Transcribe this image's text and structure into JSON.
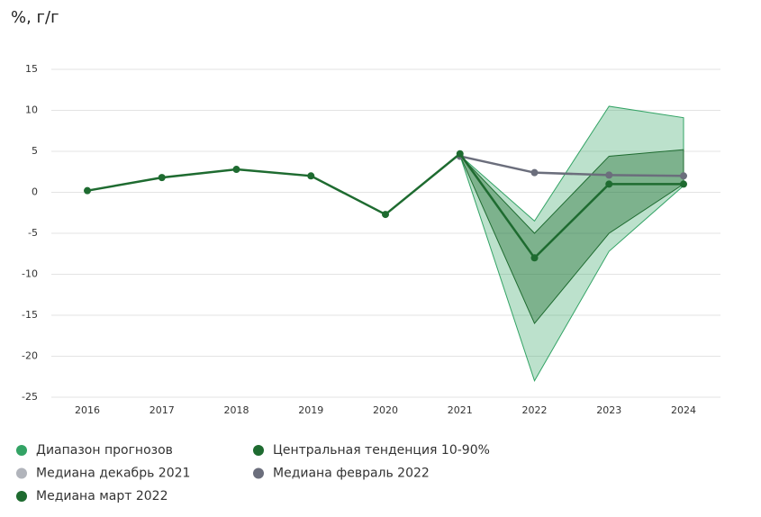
{
  "chart_data": {
    "type": "line",
    "title": "%, г/г",
    "categories": [
      "2016",
      "2017",
      "2018",
      "2019",
      "2020",
      "2021",
      "2022",
      "2023",
      "2024"
    ],
    "ylim": [
      -25,
      15
    ],
    "yticks": [
      15,
      10,
      5,
      0,
      -5,
      -10,
      -15,
      -20,
      -25
    ],
    "grid": true,
    "bands": [
      {
        "name": "Диапазон прогнозов",
        "color": "#33a365",
        "low": [
          null,
          null,
          null,
          null,
          null,
          4.5,
          -23,
          -7.2,
          0.8
        ],
        "high": [
          null,
          null,
          null,
          null,
          null,
          4.5,
          -3.5,
          10.5,
          9.1
        ]
      },
      {
        "name": "Центральная тенденция 10-90%",
        "color": "#1e6b30",
        "low": [
          null,
          null,
          null,
          null,
          null,
          4.5,
          -16,
          -5,
          1.0
        ],
        "high": [
          null,
          null,
          null,
          null,
          null,
          4.5,
          -5,
          4.4,
          5.2
        ]
      }
    ],
    "series": [
      {
        "name": "Медиана декабрь 2021",
        "color": "#b1b4bb",
        "values": [
          null,
          null,
          null,
          null,
          null,
          null,
          null,
          null,
          null
        ]
      },
      {
        "name": "Медиана февраль 2022",
        "color": "#6b6e7c",
        "values": [
          null,
          null,
          null,
          null,
          null,
          4.4,
          2.4,
          2.1,
          2.0
        ]
      },
      {
        "name": "Медиана март 2022",
        "color": "#1e6b30",
        "values": [
          0.2,
          1.8,
          2.8,
          2.0,
          -2.7,
          4.7,
          -8,
          1.0,
          1.0
        ]
      }
    ]
  }
}
